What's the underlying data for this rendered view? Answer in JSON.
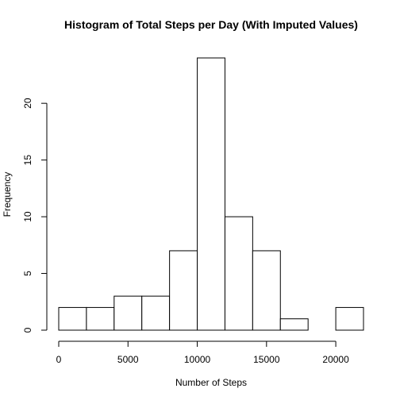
{
  "chart_data": {
    "type": "bar",
    "title": "Histogram of Total Steps per Day (With Imputed Values)",
    "xlabel": "Number of Steps",
    "ylabel": "Frequency",
    "bins": [
      {
        "from": 0,
        "to": 2000,
        "count": 2
      },
      {
        "from": 2000,
        "to": 4000,
        "count": 2
      },
      {
        "from": 4000,
        "to": 6000,
        "count": 3
      },
      {
        "from": 6000,
        "to": 8000,
        "count": 3
      },
      {
        "from": 8000,
        "to": 10000,
        "count": 7
      },
      {
        "from": 10000,
        "to": 12000,
        "count": 24
      },
      {
        "from": 12000,
        "to": 14000,
        "count": 10
      },
      {
        "from": 14000,
        "to": 16000,
        "count": 7
      },
      {
        "from": 16000,
        "to": 18000,
        "count": 1
      },
      {
        "from": 18000,
        "to": 20000,
        "count": 0
      },
      {
        "from": 20000,
        "to": 22000,
        "count": 2
      }
    ],
    "xlim": [
      0,
      22000
    ],
    "ylim": [
      0,
      24
    ],
    "x_ticks": [
      0,
      5000,
      10000,
      15000,
      20000
    ],
    "y_ticks": [
      0,
      5,
      10,
      15,
      20
    ],
    "grid": false,
    "bar_fill": "#ffffff",
    "bar_stroke": "#000000"
  }
}
